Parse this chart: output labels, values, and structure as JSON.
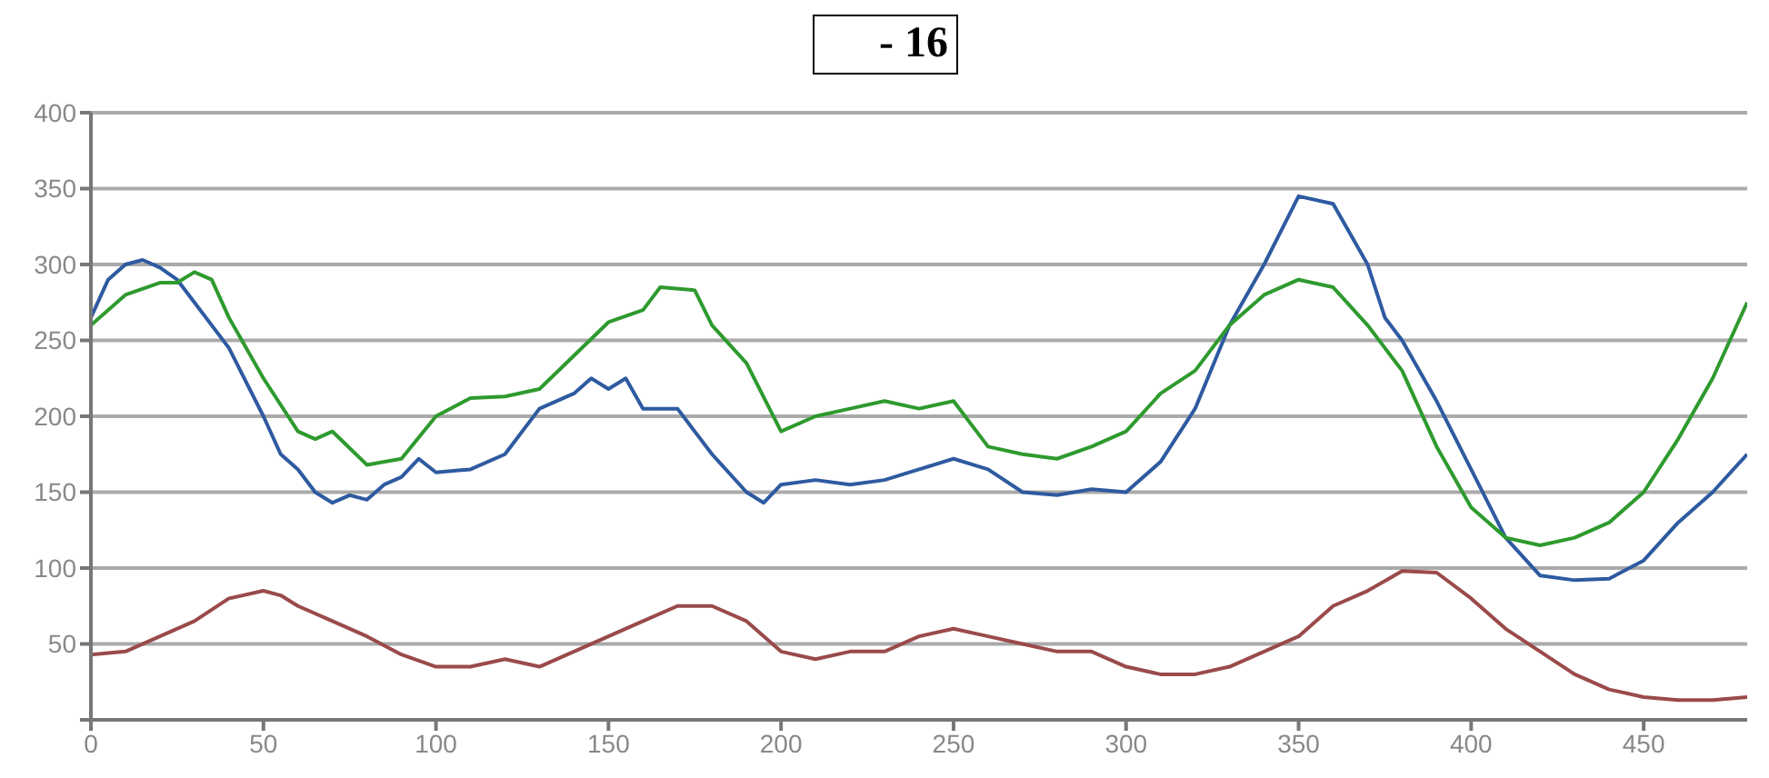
{
  "chart_data": {
    "type": "line",
    "title": "- 16",
    "xlim": [
      0,
      480
    ],
    "xticks": [
      0,
      50,
      100,
      150,
      200,
      250,
      300,
      350,
      400,
      450
    ],
    "ylim": [
      0,
      400
    ],
    "yticks": [
      {
        "value": 0,
        "label": null
      },
      50,
      100,
      150,
      200,
      250,
      300,
      350,
      400
    ],
    "grid": "y",
    "marker": "none",
    "line_style": "solid",
    "series": [
      {
        "color": "#2e5aa0",
        "x": [
          0,
          5,
          10,
          15,
          20,
          25,
          30,
          40,
          50,
          55,
          60,
          65,
          70,
          75,
          80,
          85,
          90,
          95,
          100,
          110,
          120,
          130,
          140,
          145,
          150,
          155,
          160,
          170,
          180,
          190,
          195,
          200,
          210,
          220,
          230,
          240,
          250,
          260,
          270,
          280,
          290,
          300,
          310,
          320,
          330,
          340,
          350,
          360,
          370,
          375,
          380,
          390,
          400,
          410,
          420,
          430,
          440,
          450,
          460,
          470,
          480
        ],
        "values": [
          265,
          290,
          300,
          303,
          298,
          290,
          275,
          245,
          200,
          175,
          165,
          150,
          143,
          148,
          145,
          155,
          160,
          172,
          163,
          165,
          175,
          205,
          215,
          225,
          218,
          225,
          205,
          205,
          175,
          150,
          143,
          155,
          158,
          155,
          158,
          165,
          172,
          165,
          150,
          148,
          152,
          150,
          170,
          205,
          260,
          300,
          345,
          340,
          300,
          265,
          250,
          210,
          165,
          120,
          95,
          92,
          93,
          105,
          130,
          150,
          175
        ]
      },
      {
        "color": "#2e9a2e",
        "x": [
          0,
          10,
          20,
          25,
          30,
          35,
          40,
          50,
          60,
          65,
          70,
          80,
          90,
          100,
          110,
          120,
          130,
          140,
          150,
          160,
          165,
          175,
          180,
          190,
          200,
          210,
          220,
          230,
          240,
          250,
          260,
          270,
          280,
          290,
          300,
          310,
          320,
          330,
          340,
          350,
          360,
          370,
          380,
          390,
          400,
          410,
          420,
          430,
          440,
          450,
          460,
          470,
          480
        ],
        "values": [
          260,
          280,
          288,
          288,
          295,
          290,
          265,
          225,
          190,
          185,
          190,
          168,
          172,
          200,
          212,
          213,
          218,
          240,
          262,
          270,
          285,
          283,
          260,
          235,
          190,
          200,
          205,
          210,
          205,
          210,
          180,
          175,
          172,
          180,
          190,
          215,
          230,
          260,
          280,
          290,
          285,
          260,
          230,
          180,
          140,
          120,
          115,
          120,
          130,
          150,
          185,
          225,
          275
        ]
      },
      {
        "color": "#9a4a4a",
        "x": [
          0,
          10,
          20,
          30,
          40,
          50,
          55,
          60,
          70,
          80,
          90,
          100,
          110,
          120,
          130,
          140,
          150,
          160,
          170,
          180,
          190,
          200,
          210,
          220,
          230,
          240,
          250,
          260,
          270,
          280,
          290,
          300,
          310,
          320,
          330,
          340,
          350,
          360,
          370,
          380,
          390,
          400,
          410,
          420,
          430,
          440,
          450,
          460,
          470,
          480
        ],
        "values": [
          43,
          45,
          55,
          65,
          80,
          85,
          82,
          75,
          65,
          55,
          43,
          35,
          35,
          40,
          35,
          45,
          55,
          65,
          75,
          75,
          65,
          45,
          40,
          45,
          45,
          55,
          60,
          55,
          50,
          45,
          45,
          35,
          30,
          30,
          35,
          45,
          55,
          75,
          85,
          98,
          97,
          80,
          60,
          45,
          30,
          20,
          15,
          13,
          13,
          15
        ]
      }
    ]
  }
}
